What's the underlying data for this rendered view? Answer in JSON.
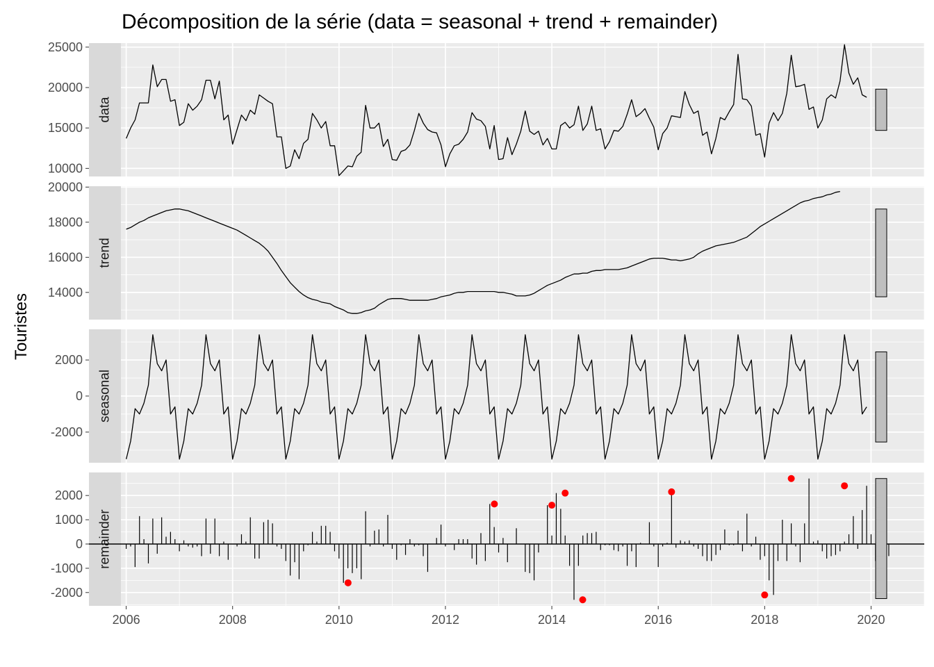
{
  "chart_data": {
    "type": "line",
    "title": "Décomposition de la série (data = seasonal + trend + remainder)",
    "ylabel": "Touristes",
    "xlabel": "",
    "x_ticks": [
      2006,
      2008,
      2010,
      2012,
      2014,
      2016,
      2018,
      2020
    ],
    "xlim": [
      2005.3,
      2021.0
    ],
    "start": 2006.0,
    "frequency": 12,
    "grid": true,
    "colors": {
      "panel_bg": "#ebebeb",
      "grid": "#ffffff",
      "strip_bg": "#d9d9d9",
      "line": "#000000",
      "outlier": "#ff0000",
      "range_bar": "#bfbfbf"
    },
    "panels": [
      {
        "name": "data",
        "ylim": [
          9000,
          25500
        ],
        "y_ticks": [
          10000,
          15000,
          20000,
          25000
        ],
        "range_bar": [
          14700,
          19800
        ],
        "values": [
          13700,
          15000,
          16000,
          18100,
          18100,
          18100,
          22800,
          20100,
          21000,
          21000,
          18300,
          18500,
          15300,
          15700,
          18000,
          17200,
          17700,
          18500,
          20900,
          20900,
          18600,
          20800,
          16000,
          16600,
          13000,
          14800,
          16600,
          15900,
          17200,
          16700,
          19100,
          18700,
          18300,
          18000,
          13900,
          13900,
          10000,
          10300,
          12300,
          11200,
          13100,
          13600,
          16800,
          16000,
          15000,
          15800,
          12800,
          12800,
          9100,
          9700,
          10300,
          10200,
          11500,
          12000,
          17800,
          15000,
          15000,
          15600,
          12700,
          13600,
          11100,
          11000,
          12100,
          12300,
          12900,
          14700,
          16800,
          15600,
          14800,
          14500,
          14400,
          12900,
          10200,
          11800,
          12800,
          13000,
          13600,
          14500,
          16900,
          16100,
          15900,
          15200,
          12400,
          15300,
          11100,
          11200,
          13800,
          11700,
          13000,
          14600,
          17100,
          14600,
          14200,
          14600,
          12900,
          13700,
          12400,
          12400,
          15300,
          15700,
          15000,
          15400,
          17700,
          14700,
          15500,
          17700,
          14700,
          14900,
          12400,
          13300,
          14700,
          14600,
          15200,
          16700,
          18500,
          16400,
          16800,
          17400,
          16200,
          15100,
          12300,
          14300,
          15000,
          16500,
          16400,
          16300,
          19500,
          17900,
          16800,
          17100,
          14100,
          14500,
          11800,
          13700,
          16300,
          16000,
          17000,
          17900,
          24100,
          18600,
          18500,
          17700,
          14100,
          14300,
          11400,
          15600,
          16900,
          15900,
          16800,
          19300,
          24000,
          20100,
          20200,
          20400,
          17300,
          17600,
          15000,
          16000,
          18600,
          19100,
          18700,
          20800,
          25300,
          21800,
          20400,
          21200,
          19100,
          18800
        ]
      },
      {
        "name": "trend",
        "ylim": [
          12450,
          20050
        ],
        "y_ticks": [
          14000,
          16000,
          18000,
          20000
        ],
        "range_bar": [
          13750,
          18750
        ],
        "values": [
          17600,
          17700,
          17850,
          18000,
          18100,
          18250,
          18350,
          18450,
          18550,
          18650,
          18700,
          18750,
          18750,
          18700,
          18650,
          18550,
          18450,
          18350,
          18250,
          18150,
          18050,
          17950,
          17850,
          17750,
          17650,
          17550,
          17400,
          17250,
          17100,
          16950,
          16800,
          16600,
          16350,
          16000,
          15650,
          15250,
          14900,
          14550,
          14300,
          14050,
          13850,
          13700,
          13600,
          13550,
          13450,
          13400,
          13350,
          13200,
          13100,
          13000,
          12850,
          12800,
          12800,
          12850,
          12950,
          13000,
          13100,
          13300,
          13450,
          13600,
          13650,
          13650,
          13650,
          13600,
          13550,
          13550,
          13550,
          13550,
          13550,
          13600,
          13650,
          13750,
          13800,
          13850,
          13950,
          14000,
          14000,
          14050,
          14050,
          14050,
          14050,
          14050,
          14050,
          14050,
          14000,
          14000,
          13950,
          13900,
          13800,
          13800,
          13800,
          13850,
          13950,
          14100,
          14250,
          14400,
          14500,
          14600,
          14700,
          14850,
          14950,
          15050,
          15050,
          15100,
          15100,
          15200,
          15250,
          15250,
          15300,
          15300,
          15300,
          15300,
          15350,
          15400,
          15500,
          15600,
          15700,
          15800,
          15900,
          15950,
          15950,
          15950,
          15900,
          15850,
          15850,
          15800,
          15850,
          15900,
          16000,
          16200,
          16350,
          16450,
          16550,
          16650,
          16700,
          16750,
          16800,
          16850,
          16950,
          17050,
          17150,
          17350,
          17550,
          17750,
          17900,
          18050,
          18200,
          18350,
          18500,
          18650,
          18800,
          18950,
          19100,
          19200,
          19250,
          19350,
          19400,
          19450,
          19550,
          19600,
          19700,
          19750
        ]
      },
      {
        "name": "seasonal",
        "ylim": [
          -3700,
          3700
        ],
        "y_ticks": [
          -2000,
          0,
          2000
        ],
        "range_bar": [
          -2550,
          2450
        ],
        "values": [
          -3500,
          -2500,
          -700,
          -1000,
          -400,
          600,
          3400,
          1800,
          1400,
          2000,
          -1000,
          -600
        ]
      },
      {
        "name": "remainder",
        "ylim": [
          -2550,
          2950
        ],
        "y_ticks": [
          -2000,
          -1000,
          0,
          1000,
          2000
        ],
        "range_bar": [
          -2250,
          2700
        ],
        "values": [
          -200,
          -100,
          -950,
          1150,
          200,
          -800,
          1050,
          -400,
          1100,
          300,
          500,
          200,
          -300,
          150,
          -100,
          -150,
          -100,
          -500,
          1050,
          -400,
          1050,
          -500,
          100,
          -650,
          0,
          -100,
          400,
          100,
          1100,
          -600,
          -600,
          900,
          1000,
          850,
          -100,
          -200,
          -700,
          -1300,
          -750,
          -1450,
          -300,
          -50,
          500,
          100,
          750,
          750,
          500,
          -300,
          -600,
          -1600,
          -1000,
          -1200,
          -1000,
          -1450,
          1350,
          -100,
          550,
          600,
          -100,
          1200,
          -200,
          -650,
          -50,
          -450,
          200,
          -100,
          -50,
          -500,
          -1150,
          0,
          250,
          800,
          -100,
          0,
          -250,
          200,
          200,
          200,
          -600,
          -850,
          450,
          -700,
          1650,
          700,
          -350,
          250,
          -750,
          0,
          650,
          0,
          -1150,
          -1200,
          -1500,
          -350,
          0,
          1600,
          350,
          2100,
          1450,
          350,
          -900,
          -2300,
          -900,
          350,
          450,
          450,
          500,
          -250,
          -50,
          -50,
          -250,
          -300,
          -100,
          -900,
          -300,
          -950,
          50,
          0,
          900,
          -100,
          -950,
          -100,
          50,
          2150,
          -150,
          150,
          100,
          150,
          -100,
          -200,
          -500,
          -700,
          -700,
          -450,
          -250,
          600,
          -50,
          -50,
          550,
          -300,
          1250,
          -100,
          300,
          -650,
          -500,
          -1500,
          -2100,
          -700,
          1000,
          -700,
          850,
          -100,
          -750,
          850,
          2700,
          100,
          150,
          -300,
          -600,
          -500,
          -450,
          -300,
          100,
          400,
          1150,
          -200,
          1400,
          2400,
          400,
          -700,
          -650,
          350,
          -500
        ]
      }
    ],
    "outliers": [
      {
        "x": 2010.17,
        "y": -1600
      },
      {
        "x": 2012.92,
        "y": 1650
      },
      {
        "x": 2014.0,
        "y": 1600
      },
      {
        "x": 2014.25,
        "y": 2100
      },
      {
        "x": 2014.58,
        "y": -2300
      },
      {
        "x": 2016.25,
        "y": 2150
      },
      {
        "x": 2018.0,
        "y": -2100
      },
      {
        "x": 2018.5,
        "y": 2700
      },
      {
        "x": 2019.5,
        "y": 2400
      }
    ]
  }
}
